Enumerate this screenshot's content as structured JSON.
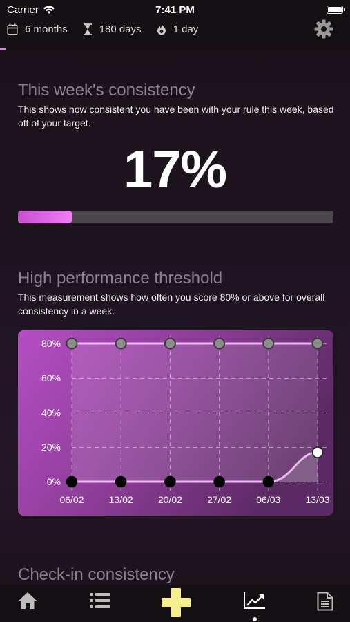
{
  "status_bar": {
    "carrier": "Carrier",
    "time": "7:41 PM"
  },
  "stats": {
    "duration": "6 months",
    "days": "180 days",
    "streak": "1 day"
  },
  "icons": {
    "calendar": "calendar-icon",
    "hourglass": "hourglass-icon",
    "flame": "flame-icon",
    "settings": "gear-icon"
  },
  "weekly": {
    "title": "This week's consistency",
    "description": "This shows how consistent you have been with your rule this week, based off of your target.",
    "percent_label": "17%",
    "progress": 0.17
  },
  "threshold": {
    "title": "High performance threshold",
    "description": "This measurement shows how often you score 80% or above for overall consistency in a week."
  },
  "chart_data": {
    "type": "line",
    "categories": [
      "06/02",
      "13/02",
      "20/02",
      "27/02",
      "06/03",
      "13/03"
    ],
    "y_ticks": [
      "0%",
      "20%",
      "40%",
      "60%",
      "80%"
    ],
    "ylim": [
      0,
      80
    ],
    "grid": true,
    "series": [
      {
        "values": [
          80,
          80,
          80,
          80,
          80,
          80
        ],
        "color": "#f0b8f5"
      },
      {
        "values": [
          0,
          0,
          0,
          0,
          0,
          17
        ],
        "color": "#f0b8f5"
      }
    ]
  },
  "checkin": {
    "title": "Check-in consistency"
  },
  "nav": {
    "items": [
      "home-icon",
      "list-icon",
      "add-icon",
      "stats-icon",
      "notes-icon"
    ],
    "active": "stats-icon",
    "colors": {
      "add": "#f4ef8a",
      "default": "#bdbdbd",
      "active": "#ffffff"
    }
  },
  "colors": {
    "accent": "#e879f9",
    "chart_bg_start": "#b24fc2",
    "chart_bg_end": "#5e2a66"
  }
}
